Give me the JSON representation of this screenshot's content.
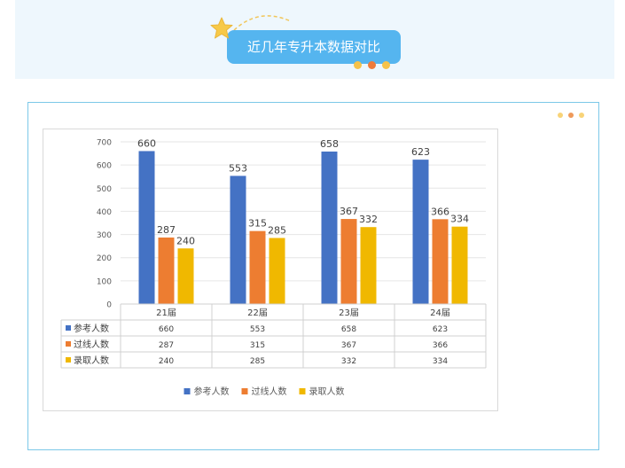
{
  "header": {
    "title": "近几年专升本数据对比"
  },
  "colors": {
    "banner_bg": "#eef7fd",
    "title_bg": "#55b5ef",
    "star": "#f7c948",
    "frame_border": "#7cc8e8",
    "dot_yellow": "#f6c24a",
    "dot_orange": "#ef7b3b",
    "dot_light": "#f8d378"
  },
  "chart_data": {
    "type": "bar",
    "categories": [
      "21届",
      "22届",
      "23届",
      "24届"
    ],
    "series": [
      {
        "name": "参考人数",
        "values": [
          660,
          553,
          658,
          623
        ],
        "color": "#4472c4"
      },
      {
        "name": "过线人数",
        "values": [
          287,
          315,
          367,
          366
        ],
        "color": "#ed7d31"
      },
      {
        "name": "录取人数",
        "values": [
          240,
          285,
          332,
          334
        ],
        "color": "#f0b800"
      }
    ],
    "ylim": [
      0,
      700
    ],
    "yticks": [
      0,
      100,
      200,
      300,
      400,
      500,
      600,
      700
    ],
    "grid": true,
    "data_table": true,
    "legend": "bottom",
    "title": "",
    "xlabel": "",
    "ylabel": ""
  }
}
